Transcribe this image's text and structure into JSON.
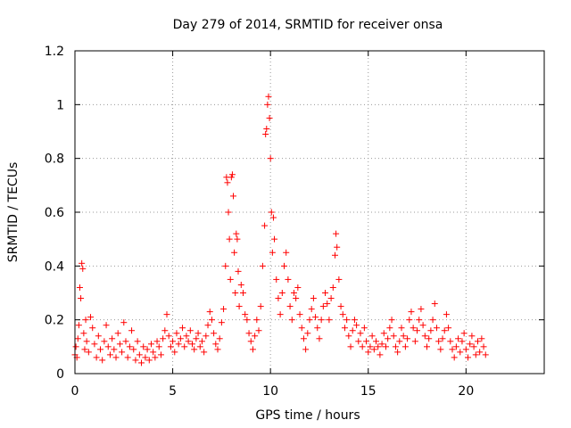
{
  "chart_data": {
    "type": "scatter",
    "title": "Day 279 of 2014, SRMTID for receiver onsa",
    "xlabel": "GPS time / hours",
    "ylabel": "SRMTID / TECUs",
    "xlim": [
      0,
      24
    ],
    "ylim": [
      0,
      1.2
    ],
    "xticks": [
      0,
      5,
      10,
      15,
      20
    ],
    "xtick_labels": [
      "0",
      "5",
      "10",
      "15",
      "20"
    ],
    "yticks": [
      0,
      0.2,
      0.4,
      0.6,
      0.8,
      1,
      1.2
    ],
    "ytick_labels": [
      "0",
      "0.2",
      "0.4",
      "0.6",
      "0.8",
      "1",
      "1.2"
    ],
    "grid": true,
    "marker": "+",
    "series": [
      {
        "name": "SRMTID",
        "color": "#ff0000",
        "points": [
          [
            0.0,
            0.07
          ],
          [
            0.05,
            0.1
          ],
          [
            0.1,
            0.06
          ],
          [
            0.15,
            0.13
          ],
          [
            0.2,
            0.18
          ],
          [
            0.25,
            0.32
          ],
          [
            0.3,
            0.28
          ],
          [
            0.35,
            0.41
          ],
          [
            0.4,
            0.39
          ],
          [
            0.45,
            0.15
          ],
          [
            0.5,
            0.09
          ],
          [
            0.55,
            0.2
          ],
          [
            0.6,
            0.12
          ],
          [
            0.7,
            0.08
          ],
          [
            0.8,
            0.21
          ],
          [
            0.9,
            0.17
          ],
          [
            1.0,
            0.11
          ],
          [
            1.1,
            0.06
          ],
          [
            1.2,
            0.14
          ],
          [
            1.3,
            0.09
          ],
          [
            1.4,
            0.05
          ],
          [
            1.5,
            0.12
          ],
          [
            1.6,
            0.18
          ],
          [
            1.7,
            0.1
          ],
          [
            1.8,
            0.07
          ],
          [
            1.9,
            0.13
          ],
          [
            2.0,
            0.09
          ],
          [
            2.1,
            0.06
          ],
          [
            2.2,
            0.15
          ],
          [
            2.3,
            0.11
          ],
          [
            2.4,
            0.08
          ],
          [
            2.5,
            0.19
          ],
          [
            2.6,
            0.12
          ],
          [
            2.7,
            0.06
          ],
          [
            2.8,
            0.1
          ],
          [
            2.9,
            0.16
          ],
          [
            3.0,
            0.09
          ],
          [
            3.1,
            0.05
          ],
          [
            3.2,
            0.12
          ],
          [
            3.3,
            0.07
          ],
          [
            3.4,
            0.04
          ],
          [
            3.5,
            0.1
          ],
          [
            3.6,
            0.06
          ],
          [
            3.7,
            0.09
          ],
          [
            3.8,
            0.05
          ],
          [
            3.9,
            0.11
          ],
          [
            4.0,
            0.08
          ],
          [
            4.1,
            0.06
          ],
          [
            4.2,
            0.12
          ],
          [
            4.3,
            0.1
          ],
          [
            4.4,
            0.07
          ],
          [
            4.5,
            0.13
          ],
          [
            4.6,
            0.16
          ],
          [
            4.7,
            0.22
          ],
          [
            4.8,
            0.14
          ],
          [
            4.9,
            0.1
          ],
          [
            5.0,
            0.12
          ],
          [
            5.1,
            0.08
          ],
          [
            5.2,
            0.15
          ],
          [
            5.3,
            0.11
          ],
          [
            5.4,
            0.13
          ],
          [
            5.5,
            0.17
          ],
          [
            5.6,
            0.1
          ],
          [
            5.7,
            0.14
          ],
          [
            5.8,
            0.12
          ],
          [
            5.9,
            0.16
          ],
          [
            6.0,
            0.11
          ],
          [
            6.1,
            0.09
          ],
          [
            6.2,
            0.13
          ],
          [
            6.3,
            0.15
          ],
          [
            6.4,
            0.1
          ],
          [
            6.5,
            0.12
          ],
          [
            6.6,
            0.08
          ],
          [
            6.7,
            0.14
          ],
          [
            6.8,
            0.18
          ],
          [
            6.9,
            0.23
          ],
          [
            7.0,
            0.2
          ],
          [
            7.1,
            0.15
          ],
          [
            7.2,
            0.11
          ],
          [
            7.3,
            0.09
          ],
          [
            7.4,
            0.13
          ],
          [
            7.5,
            0.19
          ],
          [
            7.6,
            0.24
          ],
          [
            7.7,
            0.4
          ],
          [
            7.75,
            0.73
          ],
          [
            7.8,
            0.71
          ],
          [
            7.85,
            0.6
          ],
          [
            7.9,
            0.5
          ],
          [
            7.95,
            0.35
          ],
          [
            8.0,
            0.73
          ],
          [
            8.05,
            0.74
          ],
          [
            8.1,
            0.66
          ],
          [
            8.15,
            0.45
          ],
          [
            8.2,
            0.3
          ],
          [
            8.25,
            0.52
          ],
          [
            8.3,
            0.5
          ],
          [
            8.35,
            0.38
          ],
          [
            8.4,
            0.25
          ],
          [
            8.5,
            0.33
          ],
          [
            8.6,
            0.3
          ],
          [
            8.7,
            0.22
          ],
          [
            8.8,
            0.2
          ],
          [
            8.9,
            0.15
          ],
          [
            9.0,
            0.12
          ],
          [
            9.1,
            0.09
          ],
          [
            9.2,
            0.14
          ],
          [
            9.3,
            0.2
          ],
          [
            9.4,
            0.16
          ],
          [
            9.5,
            0.25
          ],
          [
            9.6,
            0.4
          ],
          [
            9.7,
            0.55
          ],
          [
            9.75,
            0.89
          ],
          [
            9.8,
            0.91
          ],
          [
            9.85,
            1.0
          ],
          [
            9.9,
            1.03
          ],
          [
            9.95,
            0.95
          ],
          [
            10.0,
            0.8
          ],
          [
            10.05,
            0.6
          ],
          [
            10.1,
            0.45
          ],
          [
            10.15,
            0.58
          ],
          [
            10.2,
            0.5
          ],
          [
            10.3,
            0.35
          ],
          [
            10.4,
            0.28
          ],
          [
            10.5,
            0.22
          ],
          [
            10.6,
            0.3
          ],
          [
            10.7,
            0.4
          ],
          [
            10.8,
            0.45
          ],
          [
            10.9,
            0.35
          ],
          [
            11.0,
            0.25
          ],
          [
            11.1,
            0.2
          ],
          [
            11.2,
            0.3
          ],
          [
            11.3,
            0.28
          ],
          [
            11.4,
            0.32
          ],
          [
            11.5,
            0.22
          ],
          [
            11.6,
            0.17
          ],
          [
            11.7,
            0.13
          ],
          [
            11.8,
            0.09
          ],
          [
            11.9,
            0.15
          ],
          [
            12.0,
            0.2
          ],
          [
            12.1,
            0.24
          ],
          [
            12.2,
            0.28
          ],
          [
            12.3,
            0.21
          ],
          [
            12.4,
            0.17
          ],
          [
            12.5,
            0.13
          ],
          [
            12.6,
            0.2
          ],
          [
            12.7,
            0.25
          ],
          [
            12.8,
            0.3
          ],
          [
            12.9,
            0.26
          ],
          [
            13.0,
            0.2
          ],
          [
            13.1,
            0.28
          ],
          [
            13.2,
            0.32
          ],
          [
            13.3,
            0.44
          ],
          [
            13.35,
            0.52
          ],
          [
            13.4,
            0.47
          ],
          [
            13.5,
            0.35
          ],
          [
            13.6,
            0.25
          ],
          [
            13.7,
            0.22
          ],
          [
            13.8,
            0.17
          ],
          [
            13.9,
            0.2
          ],
          [
            14.0,
            0.14
          ],
          [
            14.1,
            0.1
          ],
          [
            14.2,
            0.16
          ],
          [
            14.3,
            0.2
          ],
          [
            14.4,
            0.18
          ],
          [
            14.5,
            0.12
          ],
          [
            14.6,
            0.15
          ],
          [
            14.7,
            0.1
          ],
          [
            14.8,
            0.17
          ],
          [
            14.9,
            0.12
          ],
          [
            15.0,
            0.08
          ],
          [
            15.1,
            0.1
          ],
          [
            15.2,
            0.14
          ],
          [
            15.3,
            0.09
          ],
          [
            15.4,
            0.12
          ],
          [
            15.5,
            0.1
          ],
          [
            15.6,
            0.07
          ],
          [
            15.7,
            0.11
          ],
          [
            15.8,
            0.15
          ],
          [
            15.9,
            0.1
          ],
          [
            16.0,
            0.13
          ],
          [
            16.1,
            0.17
          ],
          [
            16.2,
            0.2
          ],
          [
            16.3,
            0.14
          ],
          [
            16.4,
            0.1
          ],
          [
            16.5,
            0.08
          ],
          [
            16.6,
            0.12
          ],
          [
            16.7,
            0.17
          ],
          [
            16.8,
            0.14
          ],
          [
            16.9,
            0.1
          ],
          [
            17.0,
            0.13
          ],
          [
            17.1,
            0.2
          ],
          [
            17.2,
            0.23
          ],
          [
            17.3,
            0.17
          ],
          [
            17.4,
            0.12
          ],
          [
            17.5,
            0.16
          ],
          [
            17.6,
            0.2
          ],
          [
            17.7,
            0.24
          ],
          [
            17.8,
            0.18
          ],
          [
            17.9,
            0.14
          ],
          [
            18.0,
            0.1
          ],
          [
            18.1,
            0.13
          ],
          [
            18.2,
            0.16
          ],
          [
            18.3,
            0.2
          ],
          [
            18.4,
            0.26
          ],
          [
            18.5,
            0.17
          ],
          [
            18.6,
            0.12
          ],
          [
            18.7,
            0.09
          ],
          [
            18.8,
            0.13
          ],
          [
            18.9,
            0.16
          ],
          [
            19.0,
            0.22
          ],
          [
            19.1,
            0.17
          ],
          [
            19.2,
            0.12
          ],
          [
            19.3,
            0.09
          ],
          [
            19.4,
            0.06
          ],
          [
            19.5,
            0.1
          ],
          [
            19.6,
            0.13
          ],
          [
            19.7,
            0.08
          ],
          [
            19.8,
            0.12
          ],
          [
            19.9,
            0.15
          ],
          [
            20.0,
            0.09
          ],
          [
            20.1,
            0.06
          ],
          [
            20.2,
            0.11
          ],
          [
            20.3,
            0.14
          ],
          [
            20.4,
            0.1
          ],
          [
            20.5,
            0.07
          ],
          [
            20.6,
            0.12
          ],
          [
            20.7,
            0.08
          ],
          [
            20.8,
            0.13
          ],
          [
            20.9,
            0.1
          ],
          [
            21.0,
            0.07
          ]
        ]
      }
    ]
  }
}
